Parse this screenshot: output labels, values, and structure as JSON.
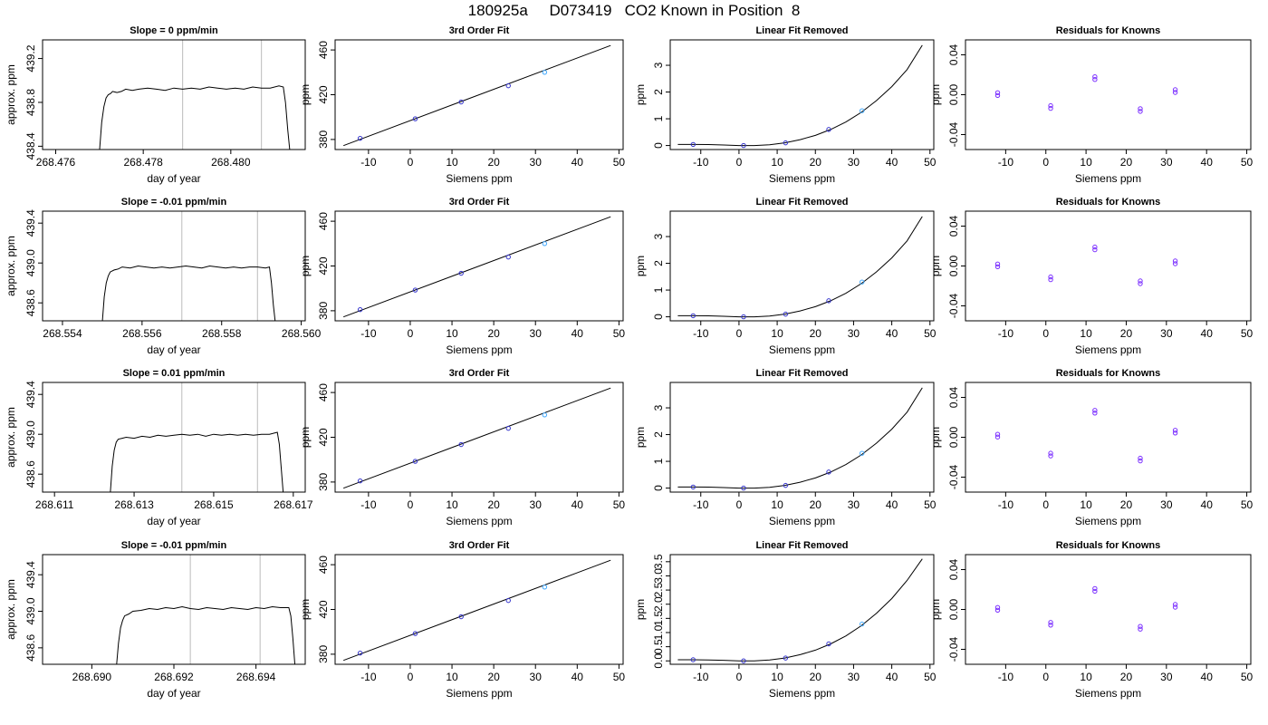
{
  "title": "180925a     D073419   CO2 Known in Position  8",
  "colors": {
    "series": "#000000",
    "marker": "#3333cc",
    "highlight": "#44aaff",
    "vline": "#bbbbbb",
    "resid": "#7b2fff"
  },
  "chart_data": [
    {
      "type": "line",
      "title": "Slope =  0  ppm/min",
      "xlabel": "day of year",
      "ylabel": "approx. ppm",
      "xlim": [
        268.4757,
        268.4817
      ],
      "ylim": [
        438.37,
        439.37
      ],
      "xticks": [
        268.476,
        268.478,
        268.48
      ],
      "xticklabels": [
        "268.476",
        "268.478",
        "268.480"
      ],
      "yticks": [
        438.4,
        438.8,
        439.2
      ],
      "yticklabels": [
        "438.4",
        "438.8",
        "439.2"
      ],
      "vlines": [
        268.4789,
        268.4807
      ],
      "x": [
        268.477,
        268.47705,
        268.4771,
        268.47715,
        268.4772,
        268.47725,
        268.4773,
        268.4774,
        268.4775,
        268.4776,
        268.47775,
        268.4779,
        268.4781,
        268.4783,
        268.4785,
        268.4787,
        268.4789,
        268.4791,
        268.4793,
        268.4795,
        268.4797,
        268.4799,
        268.4801,
        268.4803,
        268.4805,
        268.4807,
        268.4809,
        268.4811,
        268.4812,
        268.48125,
        268.4813,
        268.48135
      ],
      "y": [
        438.35,
        438.62,
        438.76,
        438.84,
        438.87,
        438.88,
        438.9,
        438.89,
        438.9,
        438.92,
        438.91,
        438.92,
        438.93,
        438.92,
        438.91,
        438.93,
        438.92,
        438.93,
        438.92,
        438.94,
        438.93,
        438.92,
        438.93,
        438.92,
        438.94,
        438.93,
        438.93,
        438.95,
        438.94,
        438.8,
        438.55,
        438.35
      ]
    },
    {
      "type": "scatter",
      "title": "3rd Order Fit",
      "xlabel": "Siemens ppm",
      "ylabel": "ppm",
      "xlim": [
        -18,
        51
      ],
      "ylim": [
        371,
        469
      ],
      "xticks": [
        -10,
        0,
        10,
        20,
        30,
        40,
        50
      ],
      "xticklabels": [
        "-10",
        "0",
        "10",
        "20",
        "30",
        "40",
        "50"
      ],
      "yticks": [
        380,
        420,
        460
      ],
      "yticklabels": [
        "380",
        "420",
        "460"
      ],
      "curve_x": [
        -16,
        48
      ],
      "curve_y": [
        374.5,
        464
      ],
      "x": [
        -12,
        1.2,
        12.2,
        23.5,
        32.2
      ],
      "y": [
        381,
        398.5,
        413.5,
        428,
        440
      ]
    },
    {
      "type": "scatter",
      "title": "Linear Fit Removed",
      "xlabel": "Siemens ppm",
      "ylabel": "ppm",
      "xlim": [
        -18,
        51
      ],
      "ylim": [
        -0.15,
        3.95
      ],
      "xticks": [
        -10,
        0,
        10,
        20,
        30,
        40,
        50
      ],
      "xticklabels": [
        "-10",
        "0",
        "10",
        "20",
        "30",
        "40",
        "50"
      ],
      "yticks": [
        0,
        1,
        2,
        3
      ],
      "yticklabels": [
        "0",
        "1",
        "2",
        "3"
      ],
      "curve_x": [
        -16,
        -12,
        -8,
        -4,
        0,
        4,
        8,
        12,
        16,
        20,
        24,
        28,
        32,
        36,
        40,
        44,
        48
      ],
      "curve_y": [
        0.04,
        0.04,
        0.035,
        0.02,
        0.0,
        0.0,
        0.03,
        0.1,
        0.22,
        0.38,
        0.6,
        0.88,
        1.24,
        1.68,
        2.2,
        2.84,
        3.75
      ],
      "x": [
        -12,
        1.2,
        12.2,
        23.5,
        32.2
      ],
      "y": [
        0.04,
        0.0,
        0.1,
        0.6,
        1.3
      ]
    },
    {
      "type": "scatter",
      "title": "Residuals for Knowns",
      "xlabel": "Siemens ppm",
      "ylabel": "ppm",
      "xlim": [
        -20,
        51
      ],
      "ylim": [
        -0.055,
        0.055
      ],
      "xticks": [
        -10,
        0,
        10,
        20,
        30,
        40,
        50
      ],
      "xticklabels": [
        "-10",
        "0",
        "10",
        "20",
        "30",
        "40",
        "50"
      ],
      "yticks": [
        -0.04,
        0.0,
        0.04
      ],
      "yticklabels": [
        "-0.04",
        "0.00",
        "0.04"
      ],
      "x": [
        -12,
        1.2,
        12.2,
        23.5,
        32.2
      ],
      "y": [
        0.002,
        -0.011,
        0.018,
        -0.014,
        0.005
      ]
    },
    {
      "type": "line",
      "title": "Slope =  -0.01  ppm/min",
      "xlabel": "day of year",
      "ylabel": "approx. ppm",
      "xlim": [
        268.5535,
        268.5601
      ],
      "ylim": [
        438.42,
        439.52
      ],
      "xticks": [
        268.554,
        268.556,
        268.558,
        268.56
      ],
      "xticklabels": [
        "268.554",
        "268.556",
        "268.558",
        "268.560"
      ],
      "yticks": [
        438.6,
        439.0,
        439.4
      ],
      "yticklabels": [
        "438.6",
        "439.0",
        "439.4"
      ],
      "vlines": [
        268.557,
        268.5589
      ],
      "x": [
        268.555,
        268.55505,
        268.5551,
        268.55515,
        268.5552,
        268.5553,
        268.5554,
        268.5555,
        268.5557,
        268.5559,
        268.5561,
        268.5563,
        268.5565,
        268.5567,
        268.5569,
        268.5571,
        268.5573,
        268.5575,
        268.5577,
        268.5579,
        268.5581,
        268.5583,
        268.5585,
        268.5587,
        268.5589,
        268.5591,
        268.5592,
        268.55925,
        268.5593,
        268.55935
      ],
      "y": [
        438.4,
        438.66,
        438.8,
        438.87,
        438.91,
        438.93,
        438.94,
        438.96,
        438.95,
        438.97,
        438.96,
        438.95,
        438.96,
        438.95,
        438.96,
        438.97,
        438.96,
        438.95,
        438.97,
        438.96,
        438.95,
        438.96,
        438.95,
        438.96,
        438.96,
        438.95,
        438.96,
        438.8,
        438.58,
        438.4
      ]
    },
    {
      "type": "scatter",
      "title": "3rd Order Fit",
      "xlabel": "Siemens ppm",
      "ylabel": "ppm",
      "xlim": [
        -18,
        51
      ],
      "ylim": [
        371,
        469
      ],
      "xticks": [
        -10,
        0,
        10,
        20,
        30,
        40,
        50
      ],
      "xticklabels": [
        "-10",
        "0",
        "10",
        "20",
        "30",
        "40",
        "50"
      ],
      "yticks": [
        380,
        420,
        460
      ],
      "yticklabels": [
        "380",
        "420",
        "460"
      ],
      "curve_x": [
        -16,
        48
      ],
      "curve_y": [
        374.5,
        464
      ],
      "x": [
        -12,
        1.2,
        12.2,
        23.5,
        32.2
      ],
      "y": [
        381,
        398.5,
        413.5,
        428,
        440
      ]
    },
    {
      "type": "scatter",
      "title": "Linear Fit Removed",
      "xlabel": "Siemens ppm",
      "ylabel": "ppm",
      "xlim": [
        -18,
        51
      ],
      "ylim": [
        -0.15,
        3.95
      ],
      "xticks": [
        -10,
        0,
        10,
        20,
        30,
        40,
        50
      ],
      "xticklabels": [
        "-10",
        "0",
        "10",
        "20",
        "30",
        "40",
        "50"
      ],
      "yticks": [
        0,
        1,
        2,
        3
      ],
      "yticklabels": [
        "0",
        "1",
        "2",
        "3"
      ],
      "curve_x": [
        -16,
        -12,
        -8,
        -4,
        0,
        4,
        8,
        12,
        16,
        20,
        24,
        28,
        32,
        36,
        40,
        44,
        48
      ],
      "curve_y": [
        0.04,
        0.04,
        0.035,
        0.02,
        0.0,
        0.0,
        0.03,
        0.1,
        0.22,
        0.38,
        0.6,
        0.88,
        1.24,
        1.68,
        2.2,
        2.84,
        3.75
      ],
      "x": [
        -12,
        1.2,
        12.2,
        23.5,
        32.2
      ],
      "y": [
        0.04,
        0.0,
        0.1,
        0.6,
        1.3
      ]
    },
    {
      "type": "scatter",
      "title": "Residuals for Knowns",
      "xlabel": "Siemens ppm",
      "ylabel": "ppm",
      "xlim": [
        -20,
        51
      ],
      "ylim": [
        -0.055,
        0.055
      ],
      "xticks": [
        -10,
        0,
        10,
        20,
        30,
        40,
        50
      ],
      "xticklabels": [
        "-10",
        "0",
        "10",
        "20",
        "30",
        "40",
        "50"
      ],
      "yticks": [
        -0.04,
        0.0,
        0.04
      ],
      "yticklabels": [
        "-0.04",
        "0.00",
        "0.04"
      ],
      "x": [
        -12,
        1.2,
        12.2,
        23.5,
        32.2
      ],
      "y": [
        0.002,
        -0.011,
        0.019,
        -0.015,
        0.005
      ]
    },
    {
      "type": "line",
      "title": "Slope =  0.01  ppm/min",
      "xlabel": "day of year",
      "ylabel": "approx. ppm",
      "xlim": [
        268.6107,
        268.6173
      ],
      "ylim": [
        438.42,
        439.52
      ],
      "xticks": [
        268.611,
        268.613,
        268.615,
        268.617
      ],
      "xticklabels": [
        "268.611",
        "268.613",
        "268.615",
        "268.617"
      ],
      "yticks": [
        438.6,
        439.0,
        439.4
      ],
      "yticklabels": [
        "438.6",
        "439.0",
        "439.4"
      ],
      "vlines": [
        268.6142,
        268.6161
      ],
      "x": [
        268.6124,
        268.61245,
        268.6125,
        268.61255,
        268.6126,
        268.6127,
        268.6128,
        268.613,
        268.6132,
        268.6134,
        268.6136,
        268.6138,
        268.614,
        268.6142,
        268.6144,
        268.6146,
        268.6148,
        268.615,
        268.6152,
        268.6154,
        268.6156,
        268.6158,
        268.616,
        268.6162,
        268.6164,
        268.6166,
        268.61665,
        268.6167,
        268.61675
      ],
      "y": [
        438.4,
        438.68,
        438.84,
        438.92,
        438.95,
        438.96,
        438.97,
        438.96,
        438.98,
        438.97,
        438.99,
        438.98,
        438.99,
        439.0,
        438.99,
        439.0,
        438.98,
        439.0,
        438.99,
        439.0,
        438.99,
        439.0,
        438.99,
        439.0,
        439.0,
        439.02,
        438.9,
        438.65,
        438.4
      ]
    },
    {
      "type": "scatter",
      "title": "3rd Order Fit",
      "xlabel": "Siemens ppm",
      "ylabel": "ppm",
      "xlim": [
        -18,
        51
      ],
      "ylim": [
        371,
        469
      ],
      "xticks": [
        -10,
        0,
        10,
        20,
        30,
        40,
        50
      ],
      "xticklabels": [
        "-10",
        "0",
        "10",
        "20",
        "30",
        "40",
        "50"
      ],
      "yticks": [
        380,
        420,
        460
      ],
      "yticklabels": [
        "380",
        "420",
        "460"
      ],
      "curve_x": [
        -16,
        48
      ],
      "curve_y": [
        374.5,
        464
      ],
      "x": [
        -12,
        1.2,
        12.2,
        23.5,
        32.2
      ],
      "y": [
        381,
        398.5,
        413.5,
        428,
        440
      ]
    },
    {
      "type": "scatter",
      "title": "Linear Fit Removed",
      "xlabel": "Siemens ppm",
      "ylabel": "ppm",
      "xlim": [
        -18,
        51
      ],
      "ylim": [
        -0.15,
        3.95
      ],
      "xticks": [
        -10,
        0,
        10,
        20,
        30,
        40,
        50
      ],
      "xticklabels": [
        "-10",
        "0",
        "10",
        "20",
        "30",
        "40",
        "50"
      ],
      "yticks": [
        0,
        1,
        2,
        3
      ],
      "yticklabels": [
        "0",
        "1",
        "2",
        "3"
      ],
      "curve_x": [
        -16,
        -12,
        -8,
        -4,
        0,
        4,
        8,
        12,
        16,
        20,
        24,
        28,
        32,
        36,
        40,
        44,
        48
      ],
      "curve_y": [
        0.04,
        0.04,
        0.035,
        0.02,
        0.0,
        0.0,
        0.03,
        0.1,
        0.22,
        0.38,
        0.6,
        0.88,
        1.24,
        1.68,
        2.2,
        2.84,
        3.75
      ],
      "x": [
        -12,
        1.2,
        12.2,
        23.5,
        32.2
      ],
      "y": [
        0.04,
        0.0,
        0.1,
        0.6,
        1.3
      ]
    },
    {
      "type": "scatter",
      "title": "Residuals for Knowns",
      "xlabel": "Siemens ppm",
      "ylabel": "ppm",
      "xlim": [
        -20,
        51
      ],
      "ylim": [
        -0.055,
        0.055
      ],
      "xticks": [
        -10,
        0,
        10,
        20,
        30,
        40,
        50
      ],
      "xticklabels": [
        "-10",
        "0",
        "10",
        "20",
        "30",
        "40",
        "50"
      ],
      "yticks": [
        -0.04,
        0.0,
        0.04
      ],
      "yticklabels": [
        "-0.04",
        "0.00",
        "0.04"
      ],
      "x": [
        -12,
        1.2,
        12.2,
        23.5,
        32.2
      ],
      "y": [
        0.003,
        -0.016,
        0.027,
        -0.021,
        0.007
      ]
    },
    {
      "type": "line",
      "title": "Slope =  -0.01  ppm/min",
      "xlabel": "day of year",
      "ylabel": "approx. ppm",
      "xlim": [
        268.6888,
        268.6952
      ],
      "ylim": [
        438.42,
        439.62
      ],
      "xticks": [
        268.69,
        268.692,
        268.694
      ],
      "xticklabels": [
        "268.690",
        "268.692",
        "268.694"
      ],
      "yticks": [
        438.6,
        439.0,
        439.4
      ],
      "yticklabels": [
        "438.6",
        "439.0",
        "439.4"
      ],
      "vlines": [
        268.6924,
        268.6941
      ],
      "x": [
        268.6906,
        268.69065,
        268.6907,
        268.69075,
        268.6908,
        268.6909,
        268.691,
        268.6912,
        268.6914,
        268.6916,
        268.6918,
        268.692,
        268.6922,
        268.6924,
        268.6926,
        268.6928,
        268.693,
        268.6932,
        268.6934,
        268.6936,
        268.6938,
        268.694,
        268.6942,
        268.6944,
        268.6946,
        268.6948,
        268.69485,
        268.6949,
        268.69495
      ],
      "y": [
        438.4,
        438.65,
        438.82,
        438.9,
        438.95,
        438.97,
        439.0,
        439.01,
        439.03,
        439.02,
        439.04,
        439.03,
        439.05,
        439.03,
        439.02,
        439.04,
        439.03,
        439.02,
        439.04,
        439.03,
        439.02,
        439.04,
        439.03,
        439.05,
        439.04,
        439.04,
        438.95,
        438.7,
        438.4
      ]
    },
    {
      "type": "scatter",
      "title": "3rd Order Fit",
      "xlabel": "Siemens ppm",
      "ylabel": "ppm",
      "xlim": [
        -18,
        51
      ],
      "ylim": [
        371,
        469
      ],
      "xticks": [
        -10,
        0,
        10,
        20,
        30,
        40,
        50
      ],
      "xticklabels": [
        "-10",
        "0",
        "10",
        "20",
        "30",
        "40",
        "50"
      ],
      "yticks": [
        380,
        420,
        460
      ],
      "yticklabels": [
        "380",
        "420",
        "460"
      ],
      "curve_x": [
        -16,
        48
      ],
      "curve_y": [
        374.5,
        464
      ],
      "x": [
        -12,
        1.2,
        12.2,
        23.5,
        32.2
      ],
      "y": [
        381,
        398.5,
        413.5,
        428,
        440
      ]
    },
    {
      "type": "scatter",
      "title": "Linear Fit Removed",
      "xlabel": "Siemens ppm",
      "ylabel": "ppm",
      "xlim": [
        -18,
        51
      ],
      "ylim": [
        -0.12,
        3.75
      ],
      "xticks": [
        -10,
        0,
        10,
        20,
        30,
        40,
        50
      ],
      "xticklabels": [
        "-10",
        "0",
        "10",
        "20",
        "30",
        "40",
        "50"
      ],
      "yticks": [
        0,
        0.5,
        1,
        1.5,
        2,
        2.5,
        3,
        3.5
      ],
      "yticklabels": [
        "0.0",
        "0.5",
        "1.0",
        "1.5",
        "2.0",
        "2.5",
        "3.0",
        "3.5"
      ],
      "curve_x": [
        -16,
        -12,
        -8,
        -4,
        0,
        4,
        8,
        12,
        16,
        20,
        24,
        28,
        32,
        36,
        40,
        44,
        48
      ],
      "curve_y": [
        0.04,
        0.04,
        0.035,
        0.02,
        0.0,
        0.0,
        0.03,
        0.1,
        0.22,
        0.38,
        0.6,
        0.88,
        1.24,
        1.68,
        2.2,
        2.84,
        3.6
      ],
      "x": [
        -12,
        1.2,
        12.2,
        23.5,
        32.2
      ],
      "y": [
        0.04,
        0.0,
        0.1,
        0.6,
        1.3
      ]
    },
    {
      "type": "scatter",
      "title": "Residuals for Knowns",
      "xlabel": "Siemens ppm",
      "ylabel": "ppm",
      "xlim": [
        -20,
        51
      ],
      "ylim": [
        -0.055,
        0.055
      ],
      "xticks": [
        -10,
        0,
        10,
        20,
        30,
        40,
        50
      ],
      "xticklabels": [
        "-10",
        "0",
        "10",
        "20",
        "30",
        "40",
        "50"
      ],
      "yticks": [
        -0.04,
        0.0,
        0.04
      ],
      "yticklabels": [
        "-0.04",
        "0.00",
        "0.04"
      ],
      "x": [
        -12,
        1.2,
        12.2,
        23.5,
        32.2
      ],
      "y": [
        0.002,
        -0.013,
        0.021,
        -0.017,
        0.005
      ]
    }
  ]
}
